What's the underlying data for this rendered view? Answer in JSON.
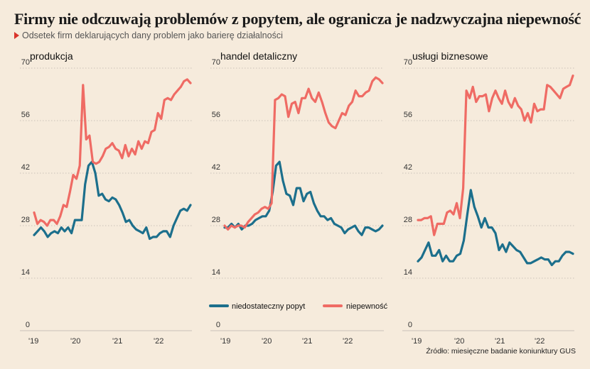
{
  "title": "Firmy nie odczuwają problemów z popytem, ale ogranicza je nadzwyczajna niepewność",
  "subtitle": "Odsetek firm deklarujących dany problem jako barierę działalności",
  "source": "Źródło: miesięczne badanie koniunktury GUS",
  "colors": {
    "background": "#f6ebdc",
    "niedostateczny_popyt": "#1c6f8c",
    "niepewnosc": "#ef6b64",
    "grid": "#c9c2b8"
  },
  "chart_data": [
    {
      "type": "line",
      "title": "produkcja",
      "ylim": [
        0,
        70
      ],
      "yticks": [
        "0",
        "14",
        "28",
        "42",
        "56",
        "70"
      ],
      "xticks": [
        "'19",
        "'20",
        "'21",
        "'22"
      ],
      "x_start": "2019-01",
      "series": [
        {
          "name": "niedostateczny popyt",
          "values": [
            25.5,
            26.5,
            27.5,
            26.5,
            25,
            26,
            26.5,
            26,
            27.5,
            26.5,
            27.5,
            26,
            29.5,
            29.5,
            29.5,
            39,
            44,
            45,
            42,
            36,
            36.5,
            35,
            34.5,
            35.5,
            35,
            33.5,
            31.5,
            29,
            29.5,
            28,
            27,
            26.5,
            26,
            27.5,
            24.5,
            25,
            25,
            26,
            26.5,
            26.5,
            25,
            28,
            30,
            32,
            32.5,
            32,
            33.5
          ]
        },
        {
          "name": "niepewność",
          "values": [
            31.5,
            28.5,
            29.5,
            29,
            28,
            29.5,
            29.5,
            28.5,
            30.5,
            33.5,
            33,
            37,
            41.5,
            40.5,
            44,
            65.5,
            51,
            52,
            45,
            44.5,
            45,
            46.5,
            48.5,
            49,
            50,
            48.5,
            48,
            46,
            49.5,
            46.5,
            48.5,
            47,
            50.5,
            48.5,
            50.5,
            50,
            53,
            53.5,
            58,
            56.5,
            61.5,
            62,
            61.5,
            63,
            64,
            65,
            66.5,
            67,
            66
          ]
        }
      ]
    },
    {
      "type": "line",
      "title": "handel detaliczny",
      "ylim": [
        0,
        70
      ],
      "yticks": [
        "0",
        "14",
        "28",
        "42",
        "56",
        "70"
      ],
      "xticks": [
        "'19",
        "'20",
        "'21",
        "'22"
      ],
      "x_start": "2019-01",
      "series": [
        {
          "name": "niedostateczny popyt",
          "values": [
            27.5,
            27.5,
            28.5,
            27.5,
            28.5,
            27,
            28,
            28,
            28.5,
            29.5,
            30,
            30.5,
            30.5,
            32,
            37,
            44,
            45,
            40,
            36.5,
            36,
            33.5,
            38,
            38,
            34.5,
            36.5,
            37,
            34,
            32,
            30.5,
            30.5,
            29.5,
            30,
            28.5,
            28,
            27.5,
            26,
            27,
            27.5,
            28,
            26.5,
            25.5,
            27.5,
            27.5,
            27,
            26.5,
            27,
            28
          ]
        },
        {
          "name": "niepewność",
          "values": [
            28,
            27,
            28,
            27.5,
            28,
            28,
            27.5,
            29,
            30,
            31,
            31.5,
            32.5,
            33,
            32.5,
            34,
            61.5,
            62,
            63,
            62.5,
            57,
            60.5,
            61,
            58,
            62,
            62,
            64.5,
            62,
            61,
            63.5,
            61,
            58,
            55.5,
            54.5,
            54,
            56,
            58,
            57.5,
            60,
            61,
            64,
            62.5,
            62.5,
            63.5,
            64,
            66.5,
            67.5,
            67,
            66
          ]
        }
      ]
    },
    {
      "type": "line",
      "title": "usługi biznesowe",
      "ylim": [
        0,
        70
      ],
      "yticks": [
        "0",
        "14",
        "28",
        "42",
        "56",
        "70"
      ],
      "xticks": [
        "'19",
        "'20",
        "'21",
        "'22"
      ],
      "x_start": "2019-01",
      "series": [
        {
          "name": "niedostateczny popyt",
          "values": [
            18.5,
            19.5,
            21.5,
            23.5,
            20,
            20,
            21.5,
            18.5,
            20,
            18.5,
            18.5,
            20,
            20.5,
            24,
            31,
            37.5,
            33,
            30.5,
            27.5,
            30,
            27.5,
            27.5,
            26,
            21.5,
            23,
            21,
            23.5,
            22.5,
            21.5,
            21,
            19.5,
            18,
            18,
            18.5,
            19,
            19.5,
            19,
            19,
            17.5,
            18.5,
            18.5,
            20,
            21,
            21,
            20.5
          ]
        },
        {
          "name": "niepewność",
          "values": [
            29.5,
            29.5,
            30,
            30,
            30.5,
            25.5,
            28.5,
            28.5,
            28.5,
            31.5,
            32,
            31,
            34,
            30,
            38,
            64,
            62,
            65,
            61,
            62.5,
            62.5,
            63,
            58.5,
            62,
            64,
            62,
            60.5,
            64,
            61,
            59.5,
            62,
            60,
            59,
            56,
            58,
            55.5,
            60.5,
            58.5,
            59,
            59,
            65.5,
            65,
            64,
            63,
            62,
            64.5,
            65,
            65.5,
            68
          ]
        }
      ]
    }
  ]
}
